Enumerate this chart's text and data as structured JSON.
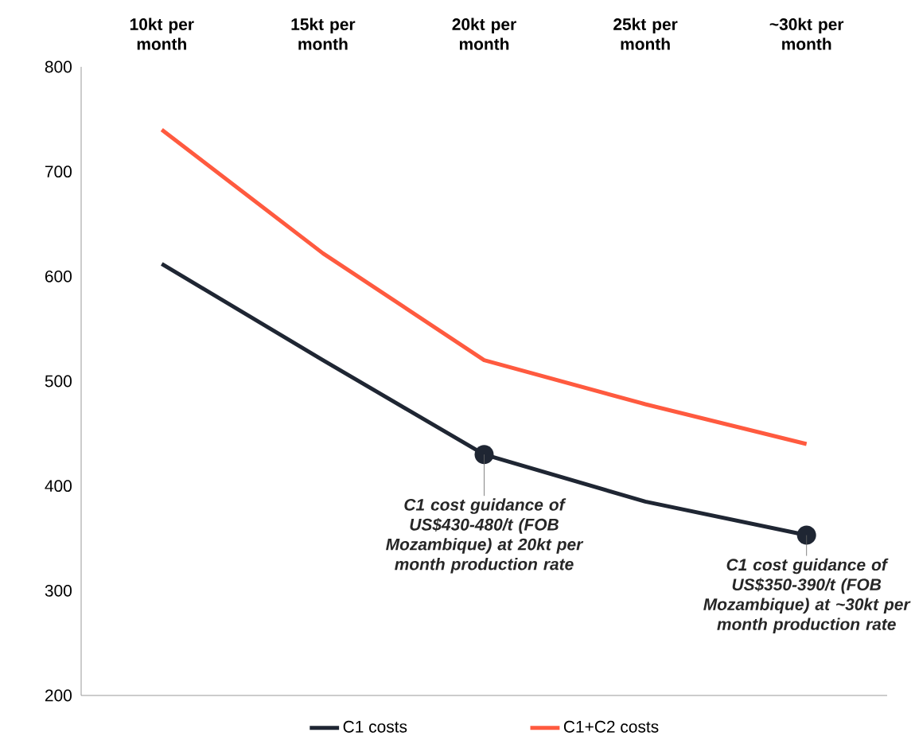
{
  "chart_data": {
    "type": "line",
    "categories": [
      "10kt per month",
      "15kt per month",
      "20kt per month",
      "25kt per month",
      "~30kt per month"
    ],
    "series": [
      {
        "name": "C1 costs",
        "color": "#1f2633",
        "values": [
          612,
          520,
          430,
          385,
          353
        ]
      },
      {
        "name": "C1+C2 costs",
        "color": "#ff5a3f",
        "values": [
          740,
          622,
          520,
          478,
          440
        ]
      }
    ],
    "ylim": [
      200,
      800
    ],
    "yticks": [
      200,
      300,
      400,
      500,
      600,
      700,
      800
    ],
    "grid": false,
    "legend": "bottom",
    "line_style": "solid",
    "annotations": [
      {
        "text": "C1 cost guidance of US$430-480/t (FOB Mozambique) at 20kt per month production rate",
        "x": "20kt per month",
        "y": 430
      },
      {
        "text": "C1 cost guidance of US$350-390/t (FOB Mozambique) at ~30kt per month production rate",
        "x": "~30kt per month",
        "y": 353
      }
    ]
  }
}
